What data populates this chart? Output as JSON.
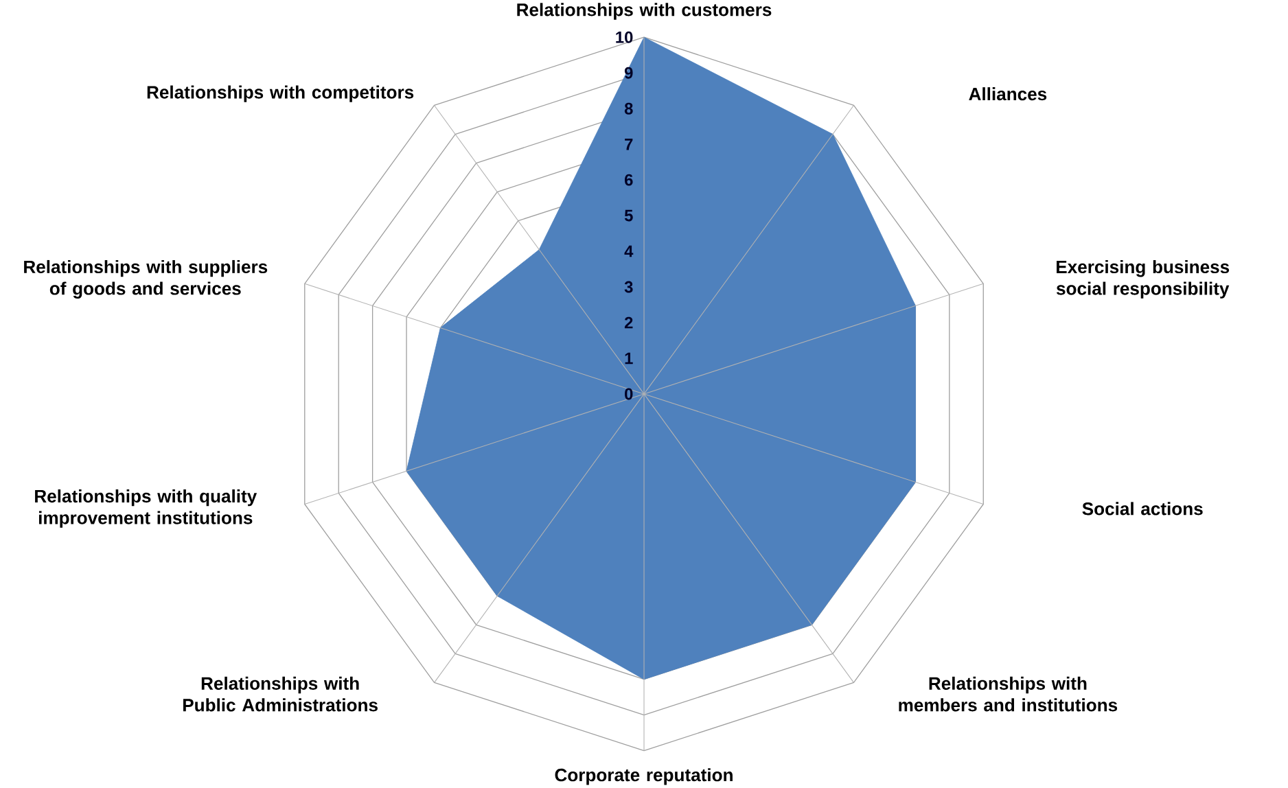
{
  "chart_data": {
    "type": "radar",
    "categories": [
      "Relationships with customers",
      "Alliances",
      "Exercising business social responsibility",
      "Social actions",
      "Relationships with members and institutions",
      "Corporate reputation",
      "Relationships with Public Administrations",
      "Relationships with quality improvement institutions",
      "Relationships with suppliers of goods and services",
      "Relationships with competitors"
    ],
    "series": [
      {
        "color": "#4f81bd",
        "values": [
          10,
          9,
          8,
          8,
          8,
          8,
          7,
          7,
          6,
          5
        ]
      }
    ],
    "ylim": [
      0,
      10
    ],
    "yticks": [
      0,
      1,
      2,
      3,
      4,
      5,
      6,
      7,
      8,
      9,
      10
    ],
    "grid": true
  }
}
